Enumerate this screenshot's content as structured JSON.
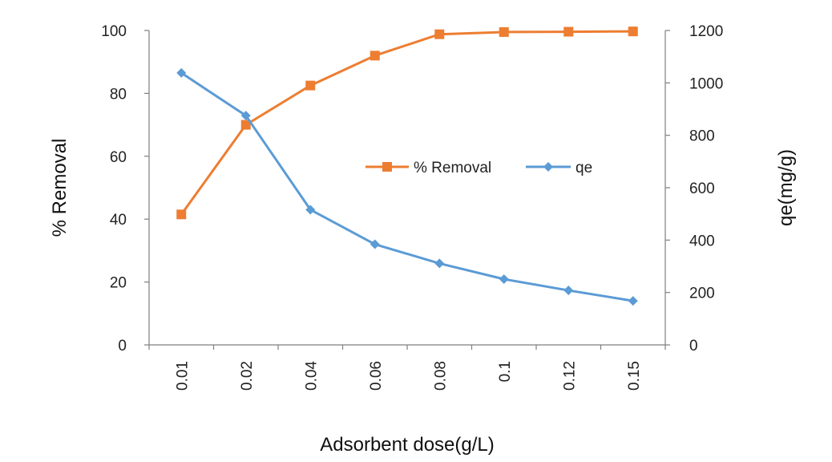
{
  "chart_data": {
    "type": "line",
    "categories": [
      "0.01",
      "0.02",
      "0.04",
      "0.06",
      "0.08",
      "0.1",
      "0.12",
      "0.15"
    ],
    "xlabel": "Adsorbent dose(g/L)",
    "ylabel": "% Removal",
    "y2label": "qe(mg/g)",
    "ylim": [
      0,
      100
    ],
    "y2lim": [
      0,
      1200
    ],
    "yticks": [
      "0",
      "20",
      "40",
      "60",
      "80",
      "100"
    ],
    "y2ticks": [
      "0",
      "200",
      "400",
      "600",
      "800",
      "1000",
      "1200"
    ],
    "grid": false,
    "legend_position": "center-right",
    "series": [
      {
        "name": "% Removal",
        "axis": "left",
        "marker": "square",
        "color": "#ED7D31",
        "values": [
          41.5,
          70,
          82.5,
          92,
          98.8,
          99.5,
          99.6,
          99.7
        ]
      },
      {
        "name": "qe",
        "axis": "right",
        "marker": "diamond",
        "color": "#5B9BD5",
        "values": [
          1038,
          875,
          516,
          384,
          311,
          251,
          208,
          168
        ]
      }
    ]
  }
}
